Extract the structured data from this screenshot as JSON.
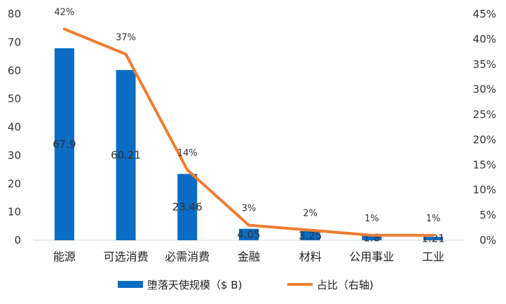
{
  "chart_data": {
    "type": "bar",
    "title": "",
    "xlabel": "",
    "ylabel": "",
    "categories": [
      "能源",
      "可选消费",
      "必需消费",
      "金融",
      "材料",
      "公用事业",
      "工业"
    ],
    "series": [
      {
        "name": "堕落天使规模（$ B)",
        "type": "bar",
        "axis": "left",
        "values": [
          67.9,
          60.21,
          23.46,
          4.05,
          3.25,
          1.8,
          1.21
        ],
        "data_labels": [
          "67.9",
          "60.21",
          "23.46",
          "4.05",
          "3.25",
          "1.8",
          "1.21"
        ],
        "color": "#0B6CC4"
      },
      {
        "name": "占比（右轴)",
        "type": "line",
        "axis": "right",
        "values": [
          42,
          37,
          14,
          3,
          2,
          1,
          1
        ],
        "data_labels": [
          "42%",
          "37%",
          "14%",
          "3%",
          "2%",
          "1%",
          "1%"
        ],
        "color": "#ED7D31"
      }
    ],
    "ylim": [
      0,
      80
    ],
    "yticks": [
      "0",
      "10",
      "20",
      "30",
      "40",
      "50",
      "60",
      "70",
      "80"
    ],
    "y2lim": [
      0,
      45
    ],
    "y2ticks": [
      "0%",
      "5%",
      "10%",
      "15%",
      "20%",
      "25%",
      "30%",
      "35%",
      "40%",
      "45%"
    ],
    "grid": false,
    "legend_position": "bottom"
  }
}
